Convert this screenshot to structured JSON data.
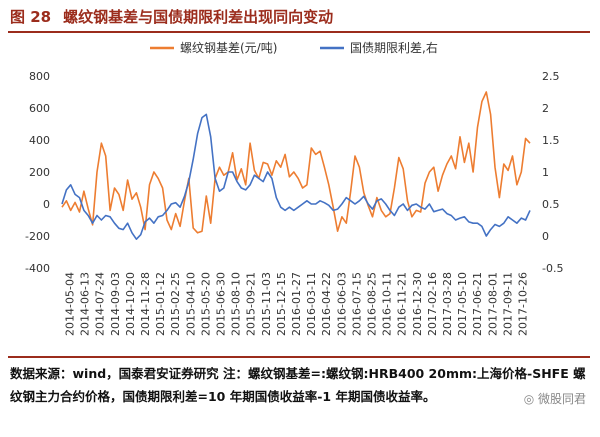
{
  "figure": {
    "number": "图 28",
    "title": "螺纹钢基差与国债期限利差出现同向变动"
  },
  "source_note": "数据来源：wind，国泰君安证券研究 注：螺纹钢基差=:螺纹钢:HRB400 20mm:上海价格-SHFE 螺纹钢主力合约价格，国债期限利差=10 年期国债收益率-1 年期国债收益率。",
  "watermark": "◎ 微股同君",
  "colors": {
    "orange": "#ed7d31",
    "blue": "#4472c4",
    "title": "#9b2c1c"
  },
  "chart_data": {
    "type": "line",
    "legend": [
      "螺纹钢基差(元/吨)",
      "国债期限利差,右"
    ],
    "legend_position": "top",
    "grid": false,
    "x_tick_labels": [
      "2014-05-04",
      "2014-06-13",
      "2014-07-24",
      "2014-09-03",
      "2014-10-20",
      "2014-11-28",
      "2015-01-12",
      "2015-02-25",
      "2015-04-10",
      "2015-05-20",
      "2015-06-30",
      "2015-08-10",
      "2015-09-21",
      "2015-11-03",
      "2015-12-15",
      "2016-01-27",
      "2016-03-11",
      "2016-04-22",
      "2016-06-03",
      "2016-07-15",
      "2016-08-25",
      "2016-10-11",
      "2016-11-21",
      "2016-12-30",
      "2017-02-16",
      "2017-03-28",
      "2017-05-10",
      "2017-06-21",
      "2017-08-01",
      "2017-09-11",
      "2017-10-26"
    ],
    "y_left": {
      "ticks": [
        -400,
        -200,
        0,
        200,
        400,
        600,
        800
      ],
      "range": [
        -400,
        800
      ]
    },
    "y_right": {
      "ticks": [
        -0.5,
        0,
        0.5,
        1,
        1.5,
        2,
        2.5
      ],
      "range": [
        -0.5,
        2.5
      ]
    },
    "series": [
      {
        "name": "螺纹钢基差(元/吨)",
        "axis": "left",
        "values": [
          -20,
          20,
          -40,
          10,
          -50,
          80,
          -30,
          -130,
          200,
          380,
          300,
          -40,
          100,
          60,
          -40,
          150,
          30,
          70,
          -20,
          -160,
          120,
          200,
          160,
          100,
          -100,
          -160,
          -60,
          -140,
          20,
          160,
          -150,
          -180,
          -170,
          50,
          -120,
          160,
          230,
          180,
          200,
          320,
          150,
          220,
          120,
          380,
          210,
          160,
          260,
          250,
          180,
          270,
          230,
          310,
          170,
          200,
          160,
          100,
          120,
          350,
          310,
          330,
          230,
          120,
          -20,
          -170,
          -80,
          -120,
          80,
          300,
          230,
          70,
          -10,
          -80,
          40,
          -40,
          -80,
          -60,
          100,
          290,
          220,
          20,
          -80,
          -40,
          -50,
          130,
          200,
          230,
          80,
          180,
          250,
          300,
          220,
          420,
          260,
          380,
          200,
          480,
          640,
          700,
          560,
          230,
          40,
          250,
          210,
          300,
          120,
          200,
          410,
          380
        ]
      },
      {
        "name": "国债期限利差,右",
        "axis": "right",
        "values": [
          0.5,
          0.72,
          0.8,
          0.65,
          0.6,
          0.4,
          0.32,
          0.2,
          0.32,
          0.25,
          0.32,
          0.3,
          0.2,
          0.12,
          0.1,
          0.2,
          0.05,
          -0.05,
          0.02,
          0.22,
          0.28,
          0.2,
          0.3,
          0.32,
          0.4,
          0.5,
          0.52,
          0.45,
          0.62,
          0.85,
          1.2,
          1.6,
          1.85,
          1.9,
          1.55,
          0.9,
          0.7,
          0.75,
          1.0,
          1.0,
          0.85,
          0.75,
          0.72,
          0.8,
          0.95,
          0.9,
          0.85,
          1.0,
          0.9,
          0.6,
          0.45,
          0.4,
          0.45,
          0.4,
          0.45,
          0.5,
          0.55,
          0.5,
          0.5,
          0.55,
          0.52,
          0.48,
          0.4,
          0.42,
          0.5,
          0.6,
          0.55,
          0.5,
          0.55,
          0.62,
          0.5,
          0.42,
          0.55,
          0.58,
          0.5,
          0.4,
          0.32,
          0.45,
          0.5,
          0.4,
          0.48,
          0.5,
          0.45,
          0.42,
          0.5,
          0.38,
          0.4,
          0.42,
          0.35,
          0.32,
          0.25,
          0.28,
          0.3,
          0.22,
          0.2,
          0.2,
          0.15,
          0.0,
          0.1,
          0.18,
          0.15,
          0.2,
          0.3,
          0.25,
          0.2,
          0.28,
          0.25,
          0.4
        ]
      }
    ]
  }
}
